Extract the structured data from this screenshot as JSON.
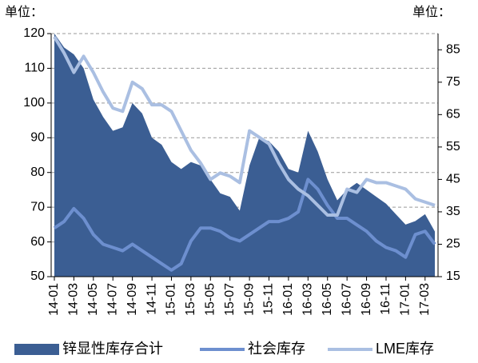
{
  "chart_data": {
    "type": "line",
    "left_unit": "单位：",
    "right_unit": "单位：",
    "categories": [
      "14-01",
      null,
      "14-03",
      null,
      "14-05",
      null,
      "14-07",
      null,
      "14-09",
      null,
      "14-11",
      null,
      "15-01",
      null,
      "15-03",
      null,
      "15-05",
      null,
      "15-07",
      null,
      "15-09",
      null,
      "15-11",
      null,
      "16-01",
      null,
      "16-03",
      null,
      "16-05",
      null,
      "16-07",
      null,
      "16-09",
      null,
      "16-11",
      null,
      "17-01",
      null,
      "17-03",
      null
    ],
    "series": [
      {
        "name": "锌显性库存合计",
        "type": "area",
        "color": "#3b5e93",
        "axis": "y",
        "values": [
          120,
          116,
          114,
          110,
          101,
          96,
          92,
          93,
          100,
          97,
          90,
          88,
          83,
          81,
          83,
          82,
          78,
          74,
          73,
          69,
          82,
          90,
          89,
          86,
          81,
          80,
          92,
          86,
          78,
          72,
          75,
          77,
          75,
          73,
          71,
          68,
          65,
          66,
          68,
          63
        ]
      },
      {
        "name": "社会库存",
        "type": "line",
        "color": "#6d8fcf",
        "axis": "y2",
        "values": [
          30,
          32,
          36,
          33,
          28,
          25,
          24,
          23,
          25,
          23,
          21,
          19,
          17,
          19,
          26,
          30,
          30,
          29,
          27,
          26,
          28,
          30,
          32,
          32,
          33,
          35,
          45,
          42,
          37,
          33,
          33,
          31,
          29,
          26,
          24,
          23,
          21,
          28,
          29,
          25
        ]
      },
      {
        "name": "LME库存",
        "type": "line",
        "color": "#aabfe2",
        "axis": "y2",
        "values": [
          89,
          84,
          78,
          83,
          78,
          72,
          67,
          66,
          75,
          73,
          68,
          68,
          66,
          60,
          54,
          50,
          45,
          47,
          46,
          44,
          60,
          58,
          56,
          50,
          45,
          42,
          40,
          37,
          34,
          34,
          42,
          41,
          45,
          44,
          44,
          43,
          42,
          39,
          38,
          37
        ]
      }
    ],
    "ylim": [
      50,
      120
    ],
    "yticks": [
      50,
      60,
      70,
      80,
      90,
      100,
      110,
      120
    ],
    "y2lim": [
      15,
      90
    ],
    "y2ticks": [
      15,
      25,
      35,
      45,
      55,
      65,
      75,
      85
    ],
    "grid": true,
    "legend": "bottom"
  }
}
